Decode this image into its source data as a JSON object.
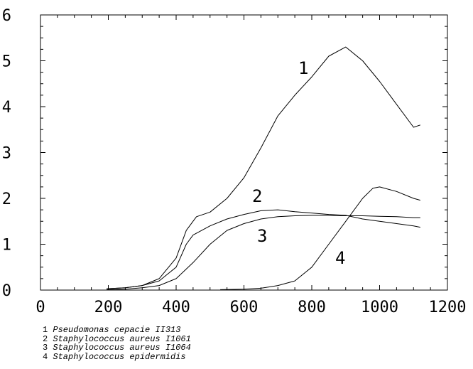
{
  "chart_data": {
    "type": "line",
    "title": "",
    "xlabel": "",
    "ylabel": "",
    "xlim": [
      0,
      1200
    ],
    "ylim": [
      0,
      0.6
    ],
    "x_ticks": [
      0,
      200,
      400,
      600,
      800,
      1000,
      1200
    ],
    "x_tick_labels": [
      "0",
      "200",
      "400",
      "600",
      "800",
      "1000",
      "1200"
    ],
    "y_ticks": [
      0,
      0.1,
      0.2,
      0.3,
      0.4,
      0.5,
      0.6
    ],
    "y_tick_labels": [
      "0",
      ".1",
      ".2",
      ".3",
      ".4",
      ".5",
      ".6"
    ],
    "grid": false,
    "series": [
      {
        "name": "Pseudomonas cepacie II313",
        "curve_label": "1",
        "x": [
          195,
          250,
          300,
          350,
          400,
          430,
          460,
          500,
          550,
          600,
          650,
          700,
          750,
          800,
          850,
          900,
          950,
          1000,
          1050,
          1100,
          1120
        ],
        "y": [
          0.003,
          0.005,
          0.01,
          0.025,
          0.07,
          0.13,
          0.16,
          0.17,
          0.2,
          0.245,
          0.31,
          0.38,
          0.425,
          0.465,
          0.51,
          0.53,
          0.5,
          0.455,
          0.405,
          0.355,
          0.36
        ]
      },
      {
        "name": "Staphylococcus aureus I1061",
        "curve_label": "2",
        "x": [
          195,
          250,
          300,
          350,
          400,
          430,
          450,
          500,
          550,
          600,
          650,
          700,
          750,
          800,
          850,
          900,
          950,
          1000,
          1050,
          1100,
          1120
        ],
        "y": [
          0.003,
          0.005,
          0.01,
          0.02,
          0.05,
          0.1,
          0.12,
          0.14,
          0.155,
          0.165,
          0.173,
          0.175,
          0.171,
          0.168,
          0.165,
          0.163,
          0.155,
          0.15,
          0.145,
          0.14,
          0.137
        ]
      },
      {
        "name": "Staphylococcus aureus I1064",
        "curve_label": "3",
        "x": [
          195,
          250,
          300,
          350,
          400,
          450,
          500,
          550,
          600,
          650,
          700,
          750,
          800,
          850,
          900,
          950,
          1000,
          1050,
          1100,
          1120
        ],
        "y": [
          0.001,
          0.002,
          0.005,
          0.01,
          0.025,
          0.06,
          0.1,
          0.13,
          0.145,
          0.155,
          0.16,
          0.162,
          0.163,
          0.163,
          0.162,
          0.162,
          0.161,
          0.16,
          0.158,
          0.158
        ]
      },
      {
        "name": "Staphylococcus epidermidis",
        "curve_label": "4",
        "x": [
          530,
          600,
          650,
          700,
          750,
          800,
          850,
          900,
          950,
          980,
          1000,
          1050,
          1100,
          1120
        ],
        "y": [
          0.001,
          0.002,
          0.004,
          0.01,
          0.02,
          0.05,
          0.1,
          0.15,
          0.2,
          0.222,
          0.225,
          0.215,
          0.2,
          0.196
        ]
      }
    ],
    "legend_placement": "below",
    "legend": [
      {
        "number": "1",
        "name": "Pseudomonas cepacie II313"
      },
      {
        "number": "2",
        "name": "Staphylococcus aureus I1061"
      },
      {
        "number": "3",
        "name": "Staphylococcus aureus I1064"
      },
      {
        "number": "4",
        "name": "Staphylococcus epidermidis"
      }
    ],
    "colors": {
      "line": "#000000",
      "axis": "#000000",
      "background": "#ffffff"
    }
  }
}
